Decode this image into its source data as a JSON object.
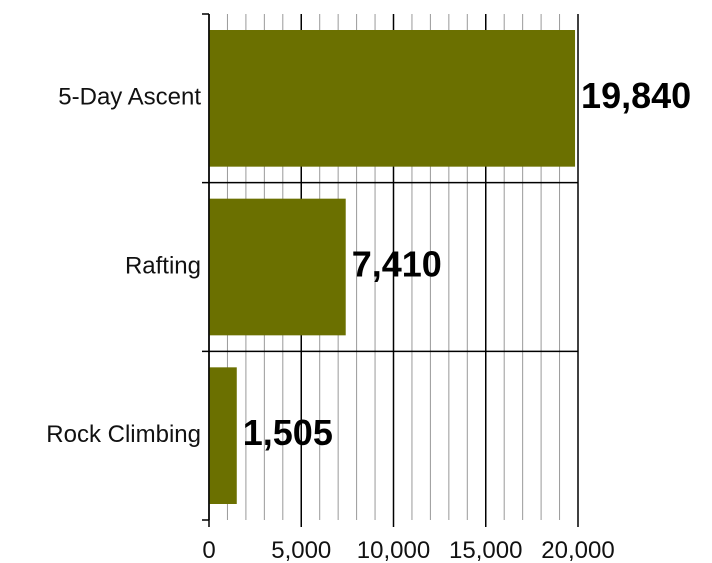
{
  "chart_data": {
    "type": "bar",
    "orientation": "horizontal",
    "categories": [
      "5-Day Ascent",
      "Rafting",
      "Rock Climbing"
    ],
    "values": [
      19840,
      7410,
      1505
    ],
    "value_labels": [
      "19,840",
      "7,410",
      "1,505"
    ],
    "xlim": [
      0,
      20000
    ],
    "xticks": [
      0,
      5000,
      10000,
      15000,
      20000
    ],
    "xtick_labels": [
      "0",
      "5,000",
      "10,000",
      "15,000",
      "20,000"
    ],
    "minor_step": 1000,
    "title": "",
    "xlabel": "",
    "ylabel": "",
    "grid": true,
    "legend": "none",
    "bar_color": "#6b7000",
    "grid_major_color": "#000000",
    "grid_minor_color": "#999999"
  }
}
